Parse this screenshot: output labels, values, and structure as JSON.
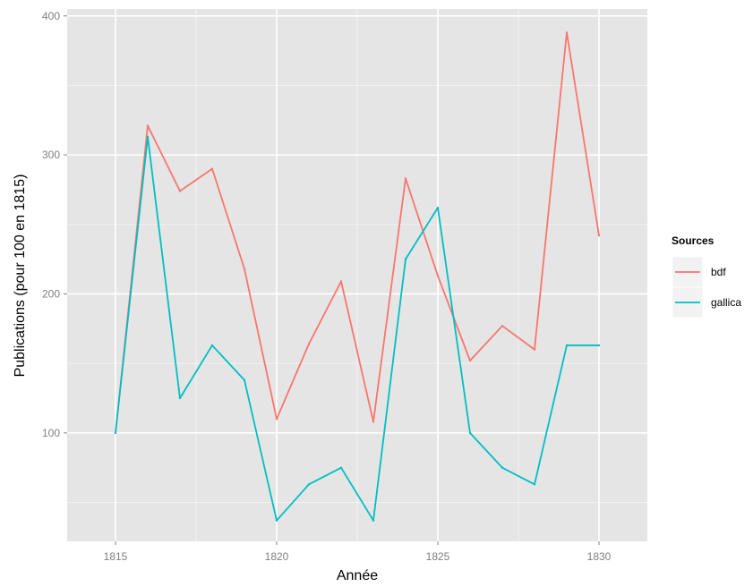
{
  "chart_data": {
    "type": "line",
    "xlabel": "Année",
    "ylabel": "Publications (pour 100 en 1815)",
    "xlim": [
      1813.5,
      1831.5
    ],
    "ylim": [
      22,
      405
    ],
    "x_ticks": [
      1815,
      1820,
      1825,
      1830
    ],
    "y_ticks": [
      100,
      200,
      300,
      400
    ],
    "grid": true,
    "legend": {
      "title": "Sources",
      "position": "right"
    },
    "x": [
      1815,
      1816,
      1817,
      1818,
      1819,
      1820,
      1821,
      1822,
      1823,
      1824,
      1825,
      1826,
      1827,
      1828,
      1829,
      1830
    ],
    "series": [
      {
        "name": "bdf",
        "color": "#f8766d",
        "values": [
          100,
          321,
          274,
          290,
          218,
          110,
          164,
          209,
          108,
          283,
          213,
          152,
          177,
          160,
          388,
          242
        ]
      },
      {
        "name": "gallica",
        "color": "#00bfc4",
        "values": [
          100,
          313,
          125,
          163,
          138,
          37,
          63,
          75,
          37,
          225,
          262,
          100,
          75,
          63,
          163,
          163
        ]
      }
    ]
  },
  "colors": {
    "panel_background": "#e5e5e5",
    "grid_major": "#ffffff",
    "grid_minor": "#f2f2f2"
  }
}
